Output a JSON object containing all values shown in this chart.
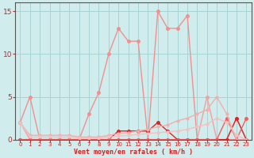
{
  "xlabel": "Vent moyen/en rafales ( km/h )",
  "x": [
    0,
    1,
    2,
    3,
    4,
    5,
    6,
    7,
    8,
    9,
    10,
    11,
    12,
    13,
    14,
    15,
    16,
    17,
    18,
    19,
    20,
    21,
    22,
    23
  ],
  "series": [
    {
      "values": [
        2,
        5,
        0,
        0,
        0,
        0,
        0,
        3,
        5.5,
        10,
        13,
        11.5,
        11.5,
        0,
        15,
        13,
        13,
        14.5,
        0,
        0,
        0,
        0,
        0,
        0
      ],
      "color": "#f09090",
      "lw": 1.0,
      "marker": "o",
      "ms": 2.5
    },
    {
      "values": [
        2,
        0,
        0,
        0,
        0,
        0,
        0,
        0,
        0,
        0,
        0,
        0,
        0,
        0,
        0,
        0,
        0,
        0,
        0,
        5,
        0,
        0,
        2.5,
        0
      ],
      "color": "#f4a0a0",
      "lw": 1.0,
      "marker": "o",
      "ms": 2.5
    },
    {
      "values": [
        0,
        0,
        0,
        0,
        0,
        0,
        0,
        0,
        0,
        0,
        1,
        1,
        1,
        1,
        2,
        1,
        0,
        0,
        0,
        0,
        0,
        0,
        2.5,
        0
      ],
      "color": "#dd2222",
      "lw": 1.0,
      "marker": "o",
      "ms": 2.5
    },
    {
      "values": [
        0,
        0,
        0,
        0,
        0,
        0,
        0,
        0,
        0,
        0,
        0,
        0,
        0,
        0,
        0,
        0,
        0,
        0,
        0,
        0,
        0,
        2.5,
        0,
        2.5
      ],
      "color": "#ee6060",
      "lw": 1.0,
      "marker": "o",
      "ms": 2.5
    },
    {
      "values": [
        2,
        0.5,
        0.5,
        0.5,
        0.5,
        0.5,
        0.3,
        0.3,
        0.3,
        0.5,
        0.7,
        0.8,
        1.0,
        1.2,
        1.5,
        1.7,
        2.2,
        2.5,
        3.0,
        3.5,
        5,
        3,
        0,
        0
      ],
      "color": "#f0b0b0",
      "lw": 1.0,
      "marker": "o",
      "ms": 2.0
    },
    {
      "values": [
        2,
        0.3,
        0.3,
        0.3,
        0.3,
        0.3,
        0.2,
        0.2,
        0.2,
        0.3,
        0.4,
        0.5,
        0.6,
        0.7,
        0.8,
        0.9,
        1.0,
        1.2,
        1.5,
        1.8,
        2.5,
        2.0,
        0.5,
        0
      ],
      "color": "#f4c0c0",
      "lw": 1.0,
      "marker": "o",
      "ms": 2.0
    }
  ],
  "ylim": [
    0,
    16
  ],
  "yticks": [
    0,
    5,
    10,
    15
  ],
  "xticks": [
    0,
    1,
    2,
    3,
    4,
    5,
    6,
    7,
    8,
    9,
    10,
    11,
    12,
    13,
    14,
    15,
    16,
    17,
    18,
    19,
    20,
    21,
    22,
    23
  ],
  "bg_color": "#d0ecec",
  "grid_color": "#a8d4d4",
  "axis_color": "#cc2222",
  "tick_color": "#cc2222",
  "label_color": "#cc2222"
}
